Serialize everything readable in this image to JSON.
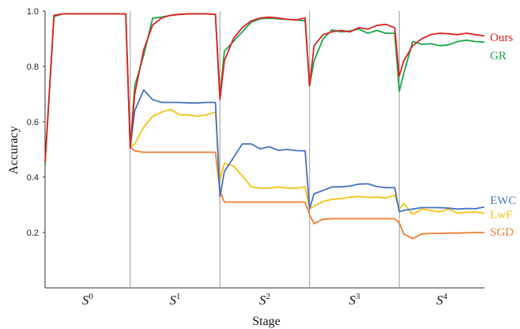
{
  "chart_data": {
    "type": "line",
    "xlabel": "Stage",
    "ylabel": "Accuracy",
    "ylim": [
      0.0,
      1.0
    ],
    "y_ticks": [
      "0.2",
      "0.4",
      "0.6",
      "0.8",
      "1.0"
    ],
    "y_tick_values": [
      0.2,
      0.4,
      0.6,
      0.8,
      1.0
    ],
    "stages": [
      {
        "base": "S",
        "sup": "0"
      },
      {
        "base": "S",
        "sup": "1"
      },
      {
        "base": "S",
        "sup": "2"
      },
      {
        "base": "S",
        "sup": "3"
      },
      {
        "base": "S",
        "sup": "4"
      }
    ],
    "x_range": [
      0,
      49
    ],
    "stage_boundaries": [
      9.5,
      19.5,
      29.5,
      39.5
    ],
    "legend_placement": "right",
    "series": [
      {
        "name": "Ours",
        "color": "#e02020",
        "x": [
          0,
          1,
          2,
          3,
          4,
          5,
          6,
          7,
          8,
          9,
          9.5,
          10,
          11,
          12,
          13,
          14,
          15,
          16,
          17,
          18,
          19,
          19.5,
          20,
          21,
          22,
          23,
          24,
          25,
          26,
          27,
          28,
          29,
          29.5,
          30,
          31,
          32,
          33,
          34,
          35,
          36,
          37,
          38,
          39,
          39.5,
          40,
          41,
          42,
          43,
          44,
          45,
          46,
          47,
          48,
          49
        ],
        "y": [
          0.455,
          0.985,
          0.99,
          0.99,
          0.99,
          0.99,
          0.99,
          0.99,
          0.99,
          0.99,
          0.505,
          0.7,
          0.86,
          0.95,
          0.975,
          0.985,
          0.988,
          0.99,
          0.99,
          0.99,
          0.988,
          0.68,
          0.82,
          0.9,
          0.94,
          0.965,
          0.975,
          0.978,
          0.975,
          0.97,
          0.968,
          0.975,
          0.73,
          0.875,
          0.915,
          0.925,
          0.93,
          0.925,
          0.94,
          0.935,
          0.948,
          0.952,
          0.94,
          0.765,
          0.82,
          0.875,
          0.9,
          0.915,
          0.92,
          0.918,
          0.915,
          0.92,
          0.915,
          0.91
        ]
      },
      {
        "name": "GR",
        "color": "#1aa64a",
        "x": [
          0,
          1,
          2,
          3,
          4,
          5,
          6,
          7,
          8,
          9,
          9.5,
          10,
          11,
          12,
          13,
          14,
          15,
          16,
          17,
          18,
          19,
          19.5,
          20,
          21,
          22,
          23,
          24,
          25,
          26,
          27,
          28,
          29,
          29.5,
          30,
          31,
          32,
          33,
          34,
          35,
          36,
          37,
          38,
          39,
          39.5,
          40,
          41,
          42,
          43,
          44,
          45,
          46,
          47,
          48,
          49
        ],
        "y": [
          0.445,
          0.98,
          0.99,
          0.99,
          0.99,
          0.99,
          0.99,
          0.99,
          0.99,
          0.99,
          0.505,
          0.73,
          0.84,
          0.975,
          0.978,
          0.985,
          0.988,
          0.99,
          0.99,
          0.99,
          0.988,
          0.69,
          0.855,
          0.89,
          0.925,
          0.96,
          0.972,
          0.975,
          0.972,
          0.97,
          0.968,
          0.965,
          0.73,
          0.82,
          0.9,
          0.932,
          0.925,
          0.928,
          0.935,
          0.92,
          0.93,
          0.92,
          0.92,
          0.71,
          0.775,
          0.89,
          0.88,
          0.882,
          0.875,
          0.878,
          0.89,
          0.895,
          0.89,
          0.888
        ]
      },
      {
        "name": "EWC",
        "color": "#4472c4",
        "x": [
          9.5,
          10,
          11,
          12,
          13,
          14,
          15,
          16,
          17,
          18,
          19,
          19.5,
          20,
          21,
          22,
          23,
          24,
          25,
          26,
          27,
          28,
          29,
          29.5,
          30,
          31,
          32,
          33,
          34,
          35,
          36,
          37,
          38,
          39,
          39.5,
          40,
          41,
          42,
          43,
          44,
          45,
          46,
          47,
          48,
          49
        ],
        "y": [
          0.51,
          0.64,
          0.715,
          0.68,
          0.67,
          0.67,
          0.67,
          0.668,
          0.668,
          0.67,
          0.67,
          0.33,
          0.42,
          0.47,
          0.52,
          0.52,
          0.502,
          0.51,
          0.497,
          0.5,
          0.496,
          0.495,
          0.285,
          0.34,
          0.352,
          0.365,
          0.365,
          0.368,
          0.375,
          0.376,
          0.366,
          0.362,
          0.362,
          0.275,
          0.28,
          0.285,
          0.29,
          0.29,
          0.29,
          0.288,
          0.285,
          0.287,
          0.286,
          0.292
        ]
      },
      {
        "name": "LwF",
        "color": "#f5c211",
        "x": [
          9.5,
          10,
          11,
          12,
          13,
          14,
          15,
          16,
          17,
          18,
          19,
          19.5,
          20,
          21,
          22,
          23,
          24,
          25,
          26,
          27,
          28,
          29,
          29.5,
          30,
          31,
          32,
          33,
          34,
          35,
          36,
          37,
          38,
          39,
          39.5,
          40,
          41,
          42,
          43,
          44,
          45,
          46,
          47,
          48,
          49
        ],
        "y": [
          0.51,
          0.52,
          0.58,
          0.62,
          0.635,
          0.645,
          0.625,
          0.625,
          0.62,
          0.625,
          0.635,
          0.39,
          0.45,
          0.44,
          0.405,
          0.365,
          0.36,
          0.36,
          0.365,
          0.36,
          0.36,
          0.365,
          0.287,
          0.295,
          0.312,
          0.32,
          0.322,
          0.328,
          0.33,
          0.327,
          0.328,
          0.325,
          0.335,
          0.285,
          0.305,
          0.265,
          0.285,
          0.28,
          0.275,
          0.285,
          0.27,
          0.273,
          0.274,
          0.27
        ]
      },
      {
        "name": "SGD",
        "color": "#ed7d31",
        "x": [
          9.5,
          10,
          11,
          12,
          13,
          14,
          15,
          16,
          17,
          18,
          19,
          19.5,
          20,
          21,
          22,
          23,
          24,
          25,
          26,
          27,
          28,
          29,
          29.5,
          30,
          31,
          32,
          33,
          34,
          35,
          36,
          37,
          38,
          39,
          39.5,
          40,
          41,
          42,
          43,
          44,
          45,
          46,
          47,
          48,
          49
        ],
        "y": [
          0.51,
          0.495,
          0.49,
          0.49,
          0.49,
          0.49,
          0.49,
          0.49,
          0.49,
          0.49,
          0.49,
          0.35,
          0.31,
          0.31,
          0.31,
          0.31,
          0.31,
          0.31,
          0.31,
          0.31,
          0.31,
          0.31,
          0.265,
          0.232,
          0.248,
          0.25,
          0.25,
          0.25,
          0.25,
          0.25,
          0.25,
          0.25,
          0.25,
          0.235,
          0.195,
          0.178,
          0.195,
          0.197,
          0.197,
          0.198,
          0.198,
          0.199,
          0.2,
          0.2
        ]
      }
    ]
  }
}
